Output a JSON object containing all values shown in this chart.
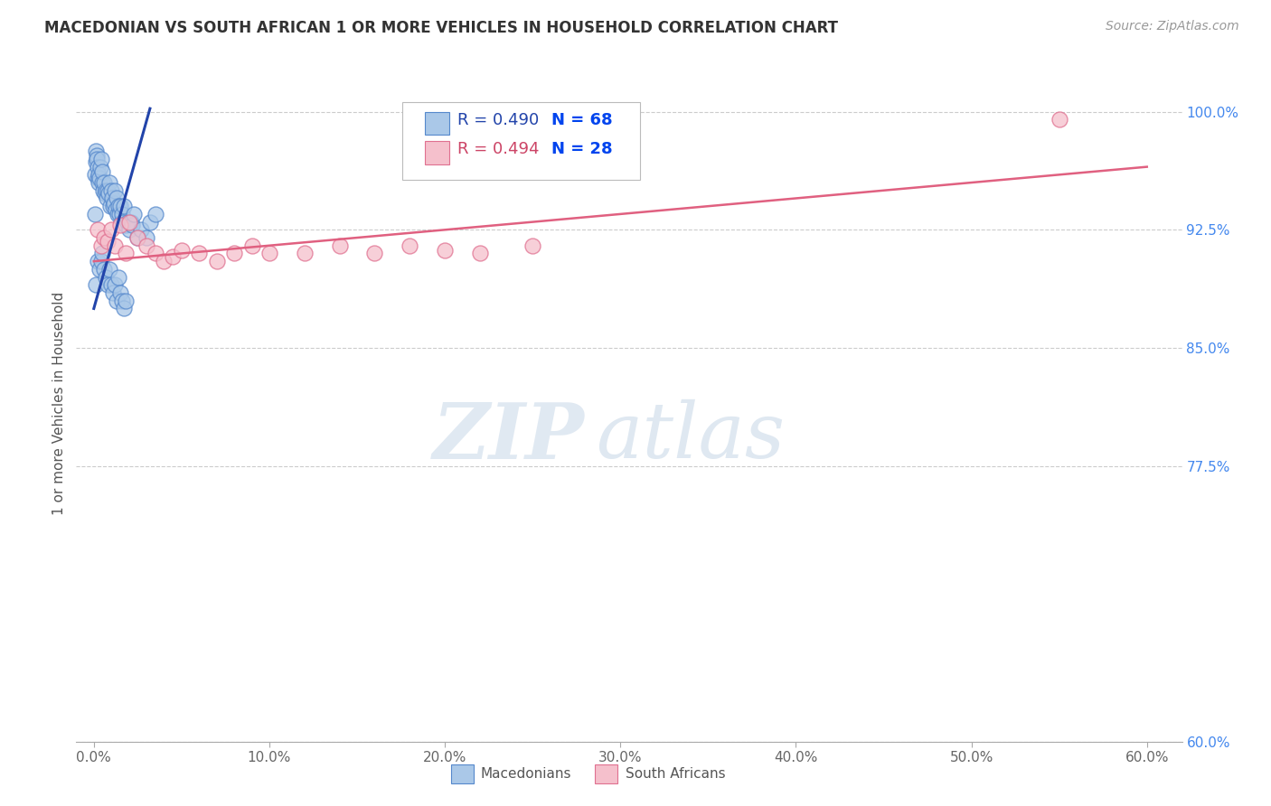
{
  "title": "MACEDONIAN VS SOUTH AFRICAN 1 OR MORE VEHICLES IN HOUSEHOLD CORRELATION CHART",
  "source": "Source: ZipAtlas.com",
  "ylabel": "1 or more Vehicles in Household",
  "xlim": [
    -1.0,
    62.0
  ],
  "ylim": [
    60.0,
    103.0
  ],
  "xticks": [
    0.0,
    10.0,
    20.0,
    30.0,
    40.0,
    50.0,
    60.0
  ],
  "yticks": [
    60.0,
    77.5,
    85.0,
    92.5,
    100.0
  ],
  "ytick_labels": [
    "60.0%",
    "77.5%",
    "85.0%",
    "92.5%",
    "100.0%"
  ],
  "xtick_labels": [
    "0.0%",
    "10.0%",
    "20.0%",
    "30.0%",
    "40.0%",
    "50.0%",
    "60.0%"
  ],
  "macedonian_color": "#aac8e8",
  "southafrican_color": "#f5c0cc",
  "macedonian_edge": "#5588cc",
  "southafrican_edge": "#e07090",
  "macedonian_R": 0.49,
  "macedonian_N": 68,
  "southafrican_R": 0.494,
  "southafrican_N": 28,
  "blue_line_color": "#2244aa",
  "pink_line_color": "#e06080",
  "watermark_zip": "ZIP",
  "watermark_atlas": "atlas",
  "mac_line_x0": 0.0,
  "mac_line_y0": 87.5,
  "mac_line_x1": 3.2,
  "mac_line_y1": 100.2,
  "sa_line_x0": 0.0,
  "sa_line_y0": 90.5,
  "sa_line_x1": 60.0,
  "sa_line_y1": 96.5,
  "macedonian_x": [
    0.05,
    0.08,
    0.1,
    0.12,
    0.15,
    0.18,
    0.2,
    0.22,
    0.25,
    0.28,
    0.3,
    0.35,
    0.4,
    0.45,
    0.5,
    0.55,
    0.6,
    0.65,
    0.7,
    0.75,
    0.8,
    0.85,
    0.9,
    0.95,
    1.0,
    1.05,
    1.1,
    1.15,
    1.2,
    1.25,
    1.3,
    1.35,
    1.4,
    1.45,
    1.5,
    1.55,
    1.6,
    1.65,
    1.7,
    1.8,
    1.9,
    2.0,
    2.1,
    2.2,
    2.3,
    2.5,
    2.7,
    3.0,
    3.2,
    3.5,
    0.1,
    0.2,
    0.3,
    0.4,
    0.5,
    0.6,
    0.7,
    0.8,
    0.9,
    1.0,
    1.1,
    1.2,
    1.3,
    1.4,
    1.5,
    1.6,
    1.7,
    1.8
  ],
  "macedonian_y": [
    93.5,
    96.0,
    97.5,
    96.8,
    97.2,
    97.0,
    96.5,
    95.8,
    96.0,
    95.5,
    95.8,
    96.5,
    97.0,
    95.5,
    96.2,
    95.0,
    95.5,
    94.8,
    95.0,
    94.5,
    95.0,
    94.8,
    95.5,
    94.0,
    95.0,
    94.5,
    94.0,
    94.2,
    95.0,
    93.8,
    94.5,
    93.5,
    94.0,
    93.5,
    94.0,
    93.0,
    93.5,
    93.0,
    94.0,
    92.8,
    93.0,
    92.5,
    93.0,
    92.8,
    93.5,
    92.0,
    92.5,
    92.0,
    93.0,
    93.5,
    89.0,
    90.5,
    90.0,
    90.5,
    91.0,
    90.0,
    89.5,
    89.0,
    90.0,
    89.0,
    88.5,
    89.0,
    88.0,
    89.5,
    88.5,
    88.0,
    87.5,
    88.0
  ],
  "southafrican_x": [
    0.2,
    0.4,
    0.6,
    0.8,
    1.0,
    1.2,
    1.5,
    1.8,
    2.0,
    2.5,
    3.0,
    3.5,
    4.0,
    4.5,
    5.0,
    6.0,
    7.0,
    8.0,
    9.0,
    10.0,
    12.0,
    14.0,
    16.0,
    18.0,
    20.0,
    22.0,
    25.0,
    55.0
  ],
  "southafrican_y": [
    92.5,
    91.5,
    92.0,
    91.8,
    92.5,
    91.5,
    92.8,
    91.0,
    93.0,
    92.0,
    91.5,
    91.0,
    90.5,
    90.8,
    91.2,
    91.0,
    90.5,
    91.0,
    91.5,
    91.0,
    91.0,
    91.5,
    91.0,
    91.5,
    91.2,
    91.0,
    91.5,
    99.5
  ]
}
